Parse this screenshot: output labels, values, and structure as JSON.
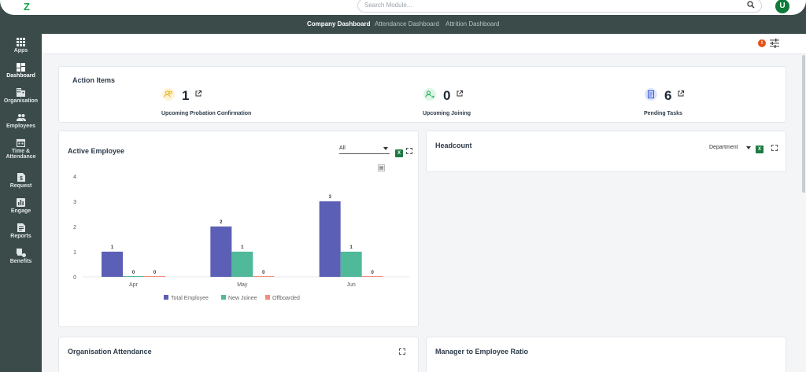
{
  "header": {
    "logo_text": "Z",
    "search_placeholder": "Search Module...",
    "avatar_initial": "U"
  },
  "tabs": [
    {
      "label": "Company Dashboard",
      "active": true
    },
    {
      "label": "Attendance Dashboard",
      "active": false
    },
    {
      "label": "Attrition Dashboard",
      "active": false
    }
  ],
  "sidebar": {
    "items": [
      {
        "label": "Apps",
        "icon": "grid-icon"
      },
      {
        "label": "Dashboard",
        "icon": "dashboard-icon",
        "active": true
      },
      {
        "label": "Organisation",
        "icon": "building-icon"
      },
      {
        "label": "Employees",
        "icon": "people-icon"
      },
      {
        "label": "Time &",
        "label2": "Attendance",
        "icon": "calendar-icon"
      },
      {
        "label": "Request",
        "icon": "request-icon"
      },
      {
        "label": "Engage",
        "icon": "engage-icon"
      },
      {
        "label": "Reports",
        "icon": "reports-icon"
      },
      {
        "label": "Benefits",
        "icon": "benefits-icon"
      }
    ]
  },
  "toolbar": {
    "info_badge": "i"
  },
  "action_items": {
    "title": "Action Items",
    "items": [
      {
        "count": "1",
        "label": "Upcoming Probation Confirmation",
        "icon": "probation-users-icon",
        "color": "#f2c94c"
      },
      {
        "count": "0",
        "label": "Upcoming Joining",
        "icon": "joining-user-icon",
        "color": "#27ae60"
      },
      {
        "count": "6",
        "label": "Pending Tasks",
        "icon": "tasks-clipboard-icon",
        "color": "#3b5bdb"
      }
    ]
  },
  "active_employee": {
    "title": "Active Employee",
    "filter_value": "All",
    "excel_label": "X"
  },
  "headcount": {
    "title": "Headcount",
    "group_by": "Department",
    "excel_label": "X"
  },
  "org_attendance": {
    "title": "Organisation Attendance"
  },
  "manager_ratio": {
    "title": "Manager to Employee Ratio"
  },
  "chart_data": {
    "type": "bar",
    "categories": [
      "Apr",
      "May",
      "Jun"
    ],
    "series": [
      {
        "name": "Total Employee",
        "values": [
          1,
          2,
          3
        ],
        "color": "#5b5fb5"
      },
      {
        "name": "New Joinee",
        "values": [
          0,
          1,
          1
        ],
        "color": "#4fb99a"
      },
      {
        "name": "Offboarded",
        "values": [
          0,
          0,
          0
        ],
        "color": "#f28b82"
      }
    ],
    "ylim": [
      0,
      4
    ],
    "yticks": [
      "0",
      "1",
      "2",
      "3",
      "4"
    ],
    "legend": "bottom",
    "grid": false
  }
}
